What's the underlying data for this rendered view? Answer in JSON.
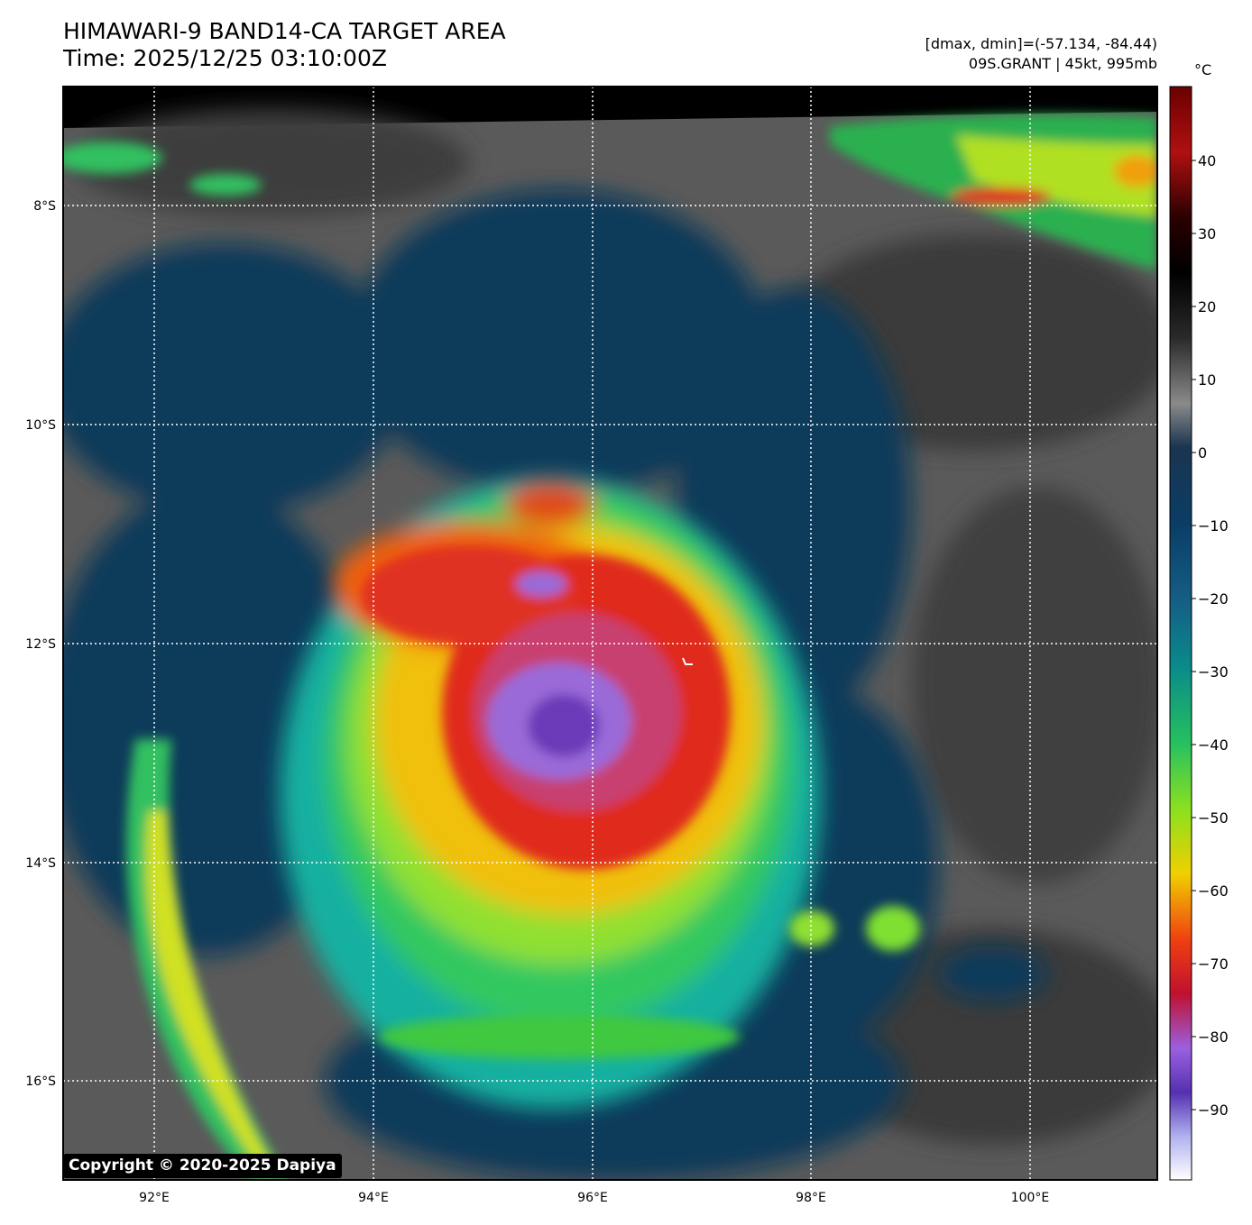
{
  "header": {
    "title_line1": "HIMAWARI-9 BAND14-CA TARGET AREA",
    "title_line2": "Time: 2025/12/25 03:10:00Z",
    "stats_line": "[dmax, dmin]=(-57.134, -84.44)",
    "storm_line": "09S.GRANT | 45kt, 995mb"
  },
  "map": {
    "lat_labels": [
      "8°S",
      "10°S",
      "12°S",
      "14°S",
      "16°S"
    ],
    "lon_labels": [
      "92°E",
      "94°E",
      "96°E",
      "98°E",
      "100°E"
    ],
    "colors": {
      "ocean_dark": "#0c3a5a",
      "cloud_gray": "#5a5a5a",
      "cold_green": "#3ed04a",
      "very_cold_red": "#e02a1e",
      "coldest_purple": "#9a6ad8",
      "gridline": "#ffffff"
    },
    "storm_center": {
      "lat": -12.7,
      "lon": 95.8
    }
  },
  "colorbar": {
    "unit": "°C",
    "tick_labels": [
      "40",
      "30",
      "20",
      "10",
      "0",
      "−10",
      "−20",
      "−30",
      "−40",
      "−50",
      "−60",
      "−70",
      "−80",
      "−90"
    ]
  },
  "footer": {
    "copyright": "Copyright © 2020-2025 Dapiya"
  }
}
